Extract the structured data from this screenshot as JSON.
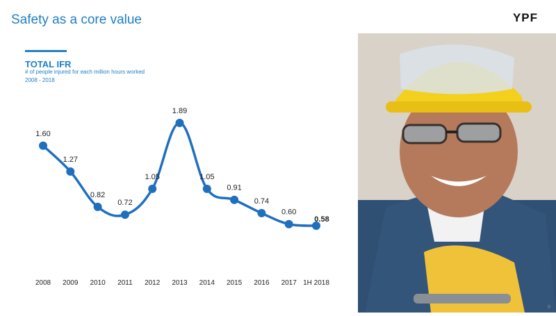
{
  "header": {
    "title": "Safety as a core value",
    "logo_text": "YPF"
  },
  "chart_data": {
    "type": "line",
    "title": "TOTAL IFR",
    "subtitle": "# of people injured for each million hours worked",
    "period": "2008 - 2018",
    "categories": [
      "2008",
      "2009",
      "2010",
      "2011",
      "2012",
      "2013",
      "2014",
      "2015",
      "2016",
      "2017",
      "1H 2018"
    ],
    "values": [
      1.6,
      1.27,
      0.82,
      0.72,
      1.05,
      1.89,
      1.05,
      0.91,
      0.74,
      0.6,
      0.58
    ],
    "value_labels": [
      "1.60",
      "1.27",
      "0.82",
      "0.72",
      "1.05",
      "1.89",
      "1.05",
      "0.91",
      "0.74",
      "0.60",
      "0.58"
    ],
    "highlighted_index": 10,
    "ylim": [
      0,
      2.2
    ],
    "grid": false,
    "line_color": "#1f6fbf",
    "marker_color": "#1f6fbf"
  },
  "photo": {
    "subject": "smiling worker wearing hard hat, safety glasses and yellow gloves"
  },
  "footer": {
    "page_number": "8"
  }
}
